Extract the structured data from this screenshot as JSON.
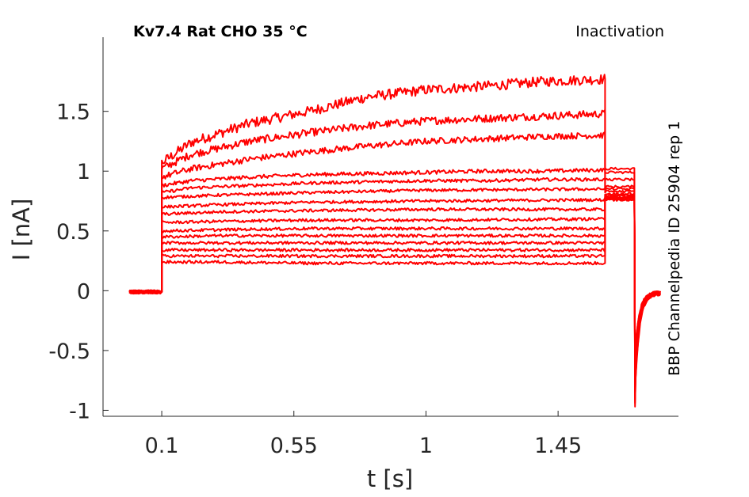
{
  "chart_data": {
    "type": "line",
    "title": "Kv7.4  Rat  CHO  35 °C",
    "protocol_label": "Inactivation",
    "side_label": "BBP Channelpedia ID 25904 rep 1",
    "xlabel": "t [s]",
    "ylabel": "I [nA]",
    "xlim": [
      -0.1,
      1.86
    ],
    "ylim": [
      -1.05,
      2.12
    ],
    "x_ticks": [
      0.1,
      0.55,
      1,
      1.45
    ],
    "x_tick_labels": [
      "0.1",
      "0.55",
      "1",
      "1.45"
    ],
    "y_ticks": [
      -1,
      -0.5,
      0,
      0.5,
      1,
      1.5
    ],
    "y_tick_labels": [
      "-1",
      "-0.5",
      "0",
      "0.5",
      "1",
      "1.5"
    ],
    "grid": false,
    "line_color": "#ff0000",
    "step_onset_s": 0.1,
    "step_offset_s": 1.61,
    "sweeps": [
      {
        "x": [
          0.1,
          0.2,
          0.4,
          0.6,
          0.8,
          1.0,
          1.2,
          1.4,
          1.61
        ],
        "y": [
          1.07,
          1.24,
          1.4,
          1.5,
          1.62,
          1.68,
          1.71,
          1.75,
          1.77
        ],
        "tail": 1.02
      },
      {
        "x": [
          0.1,
          0.2,
          0.4,
          0.6,
          0.8,
          1.0,
          1.2,
          1.4,
          1.61
        ],
        "y": [
          1.02,
          1.14,
          1.25,
          1.32,
          1.38,
          1.42,
          1.44,
          1.46,
          1.48
        ],
        "tail": 0.99
      },
      {
        "x": [
          0.1,
          0.2,
          0.4,
          0.6,
          0.8,
          1.0,
          1.2,
          1.4,
          1.61
        ],
        "y": [
          0.95,
          1.02,
          1.1,
          1.16,
          1.21,
          1.25,
          1.27,
          1.29,
          1.3
        ],
        "tail": 0.93
      },
      {
        "x": [
          0.1,
          0.2,
          0.4,
          0.6,
          0.8,
          1.0,
          1.2,
          1.4,
          1.61
        ],
        "y": [
          0.88,
          0.92,
          0.95,
          0.97,
          0.98,
          0.99,
          1.0,
          1.0,
          1.01
        ],
        "tail": 0.87
      },
      {
        "x": [
          0.1,
          0.2,
          0.4,
          0.6,
          0.8,
          1.0,
          1.2,
          1.4,
          1.61
        ],
        "y": [
          0.82,
          0.86,
          0.88,
          0.9,
          0.91,
          0.92,
          0.92,
          0.93,
          0.93
        ],
        "tail": 0.85
      },
      {
        "x": [
          0.1,
          0.3,
          0.6,
          1.0,
          1.61
        ],
        "y": [
          0.78,
          0.8,
          0.82,
          0.84,
          0.85
        ],
        "tail": 0.83
      },
      {
        "x": [
          0.1,
          0.3,
          0.6,
          1.0,
          1.61
        ],
        "y": [
          0.7,
          0.72,
          0.74,
          0.75,
          0.76
        ],
        "tail": 0.81
      },
      {
        "x": [
          0.1,
          0.3,
          0.6,
          1.0,
          1.61
        ],
        "y": [
          0.64,
          0.66,
          0.67,
          0.68,
          0.68
        ],
        "tail": 0.8
      },
      {
        "x": [
          0.1,
          0.3,
          0.6,
          1.0,
          1.61
        ],
        "y": [
          0.57,
          0.58,
          0.59,
          0.59,
          0.6
        ],
        "tail": 0.79
      },
      {
        "x": [
          0.1,
          0.3,
          0.6,
          1.0,
          1.61
        ],
        "y": [
          0.5,
          0.51,
          0.52,
          0.52,
          0.52
        ],
        "tail": 0.78
      },
      {
        "x": [
          0.1,
          0.3,
          0.6,
          1.0,
          1.61
        ],
        "y": [
          0.45,
          0.46,
          0.46,
          0.46,
          0.46
        ],
        "tail": 0.78
      },
      {
        "x": [
          0.1,
          0.3,
          0.6,
          1.0,
          1.61
        ],
        "y": [
          0.4,
          0.4,
          0.4,
          0.4,
          0.4
        ],
        "tail": 0.77
      },
      {
        "x": [
          0.1,
          0.3,
          0.6,
          1.0,
          1.61
        ],
        "y": [
          0.34,
          0.34,
          0.34,
          0.34,
          0.34
        ],
        "tail": 0.77
      },
      {
        "x": [
          0.1,
          0.3,
          0.6,
          1.0,
          1.61
        ],
        "y": [
          0.29,
          0.29,
          0.29,
          0.29,
          0.29
        ],
        "tail": 0.76
      },
      {
        "x": [
          0.1,
          0.3,
          0.6,
          1.0,
          1.61
        ],
        "y": [
          0.24,
          0.24,
          0.23,
          0.23,
          0.23
        ],
        "tail": 0.76
      }
    ],
    "baseline_current_nA": -0.01,
    "tail_segment_s": [
      1.61,
      1.71
    ],
    "return_segment_s": [
      1.71,
      1.8
    ],
    "return_trough_nA": -0.97,
    "return_end_nA": -0.02
  }
}
